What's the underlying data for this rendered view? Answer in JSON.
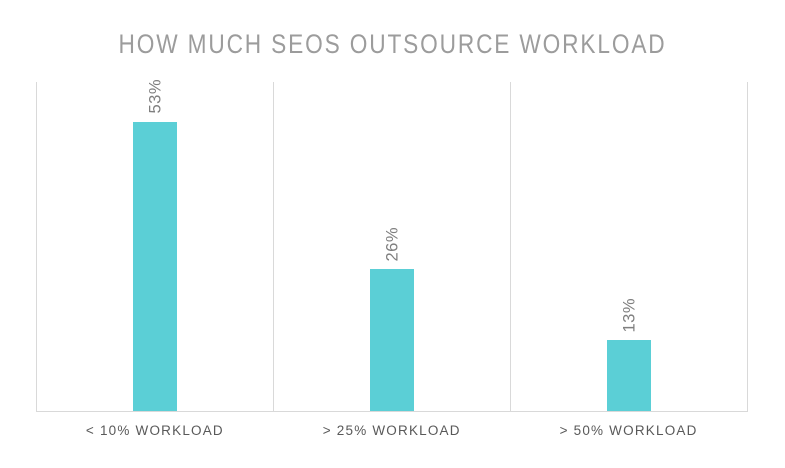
{
  "chart_data": {
    "type": "bar",
    "title": "HOW MUCH SEOS OUTSOURCE WORKLOAD",
    "categories": [
      "< 10% WORKLOAD",
      "> 25% WORKLOAD",
      "> 50% WORKLOAD"
    ],
    "values": [
      53,
      26,
      13
    ],
    "data_labels": [
      "53%",
      "26%",
      "13%"
    ],
    "xlabel": "",
    "ylabel": "",
    "ylim": [
      0,
      60.3
    ],
    "bar_color": "#5bcfd6",
    "legend": "none",
    "grid": "vertical category separators only",
    "data_label_rotation": "rotated 90 degrees, reading bottom to top, above each bar"
  },
  "style": {
    "background_color": "#ffffff",
    "plot_border_color": "#d9d9d9",
    "title_color": "#9c9c9c",
    "data_label_color": "#7f7f7f",
    "category_label_color": "#595959"
  }
}
